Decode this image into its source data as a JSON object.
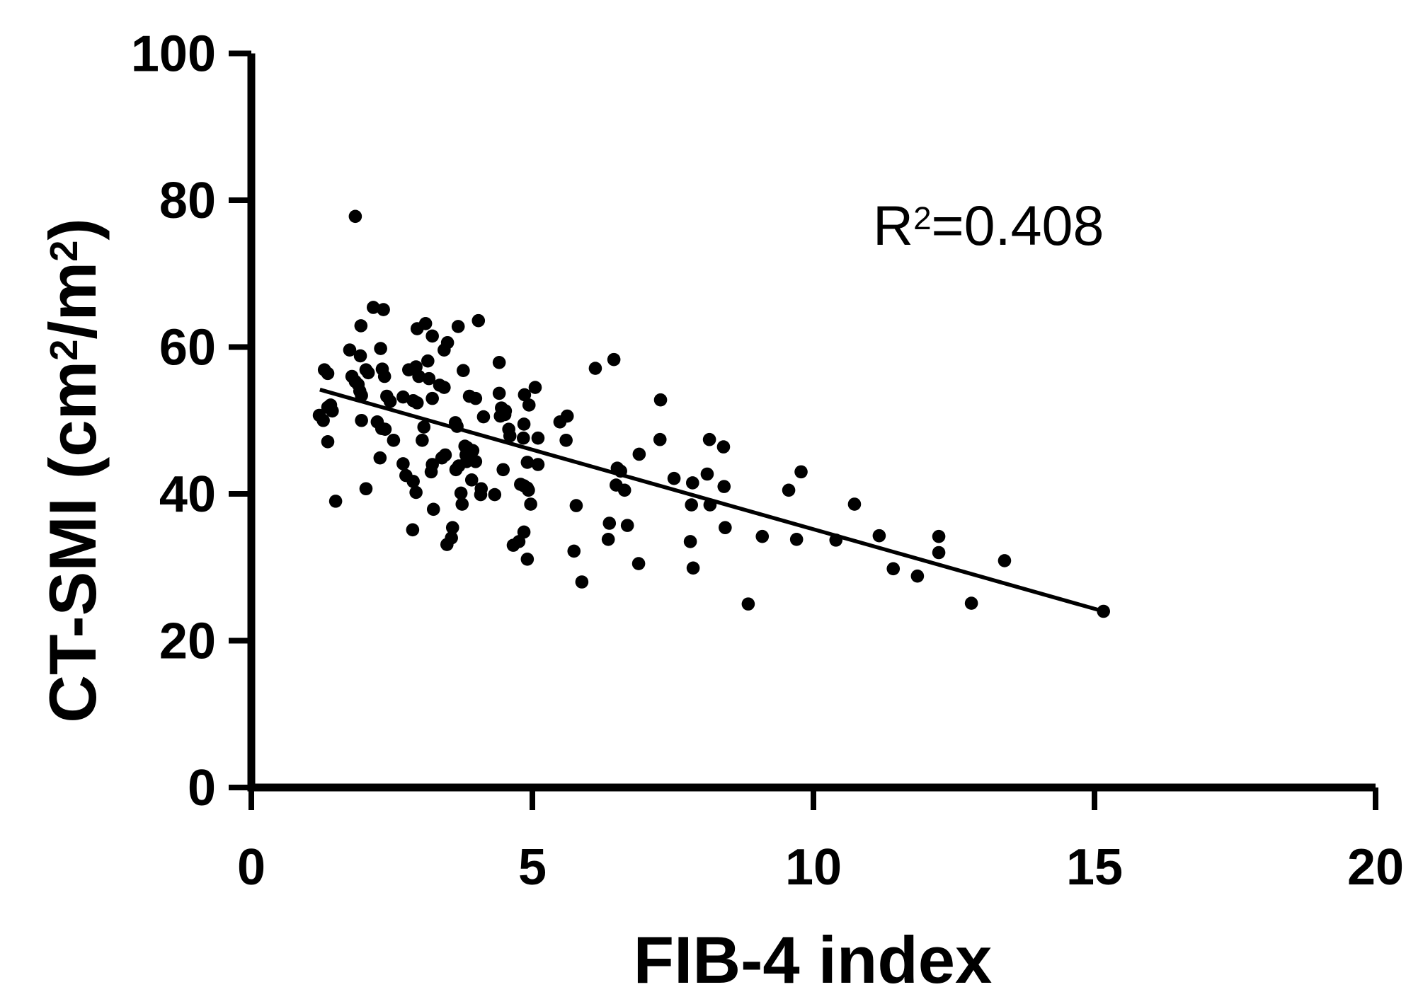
{
  "colors": {
    "ink": "#000000",
    "background": "#ffffff"
  },
  "annotation": {
    "text": "R2=0.408",
    "parts": [
      {
        "text": "R"
      },
      {
        "text": "2",
        "sup": true
      },
      {
        "text": "=0.408"
      }
    ]
  },
  "axes": {
    "x": {
      "title": "FIB-4 index"
    },
    "y": {
      "title": "CT-SMI (cm2/m2)",
      "title_parts": [
        {
          "text": "CT-SMI (cm"
        },
        {
          "text": "2",
          "sup": true
        },
        {
          "text": "/m"
        },
        {
          "text": "2",
          "sup": true
        },
        {
          "text": ")"
        }
      ]
    }
  },
  "chart_data": {
    "type": "scatter",
    "title": "",
    "xlabel": "FIB-4 index",
    "ylabel": "CT-SMI (cm2/m2)",
    "xlim": [
      0,
      20
    ],
    "ylim": [
      0,
      100
    ],
    "xticks": [
      0,
      5,
      10,
      15,
      20
    ],
    "yticks": [
      0,
      20,
      40,
      60,
      80,
      100
    ],
    "grid": false,
    "legend": "none",
    "r_squared": 0.408,
    "regression_line": {
      "x1": 1.22,
      "y1": 54.2,
      "x2": 15.16,
      "y2": 24.0
    },
    "points": [
      [
        1.85,
        77.8
      ],
      [
        2.17,
        65.4
      ],
      [
        2.35,
        65.1
      ],
      [
        1.95,
        62.9
      ],
      [
        2.95,
        62.5
      ],
      [
        3.1,
        63.2
      ],
      [
        3.68,
        62.8
      ],
      [
        4.04,
        63.6
      ],
      [
        3.22,
        61.5
      ],
      [
        3.49,
        60.6
      ],
      [
        3.43,
        59.6
      ],
      [
        1.75,
        59.6
      ],
      [
        1.94,
        58.8
      ],
      [
        2.3,
        59.8
      ],
      [
        1.3,
        56.9
      ],
      [
        1.36,
        56.4
      ],
      [
        2.04,
        56.9
      ],
      [
        2.08,
        56.5
      ],
      [
        2.33,
        57.0
      ],
      [
        2.37,
        56.0
      ],
      [
        2.8,
        56.9
      ],
      [
        2.93,
        57.3
      ],
      [
        2.98,
        56.0
      ],
      [
        3.14,
        58.1
      ],
      [
        3.16,
        55.7
      ],
      [
        3.35,
        54.8
      ],
      [
        3.43,
        54.5
      ],
      [
        1.79,
        56.0
      ],
      [
        1.85,
        55.3
      ],
      [
        1.9,
        54.9
      ],
      [
        1.93,
        54.0
      ],
      [
        1.96,
        53.4
      ],
      [
        2.41,
        53.3
      ],
      [
        2.47,
        52.6
      ],
      [
        2.7,
        53.2
      ],
      [
        2.88,
        52.7
      ],
      [
        2.95,
        52.4
      ],
      [
        3.22,
        53.0
      ],
      [
        1.21,
        50.7
      ],
      [
        1.28,
        50.0
      ],
      [
        1.36,
        51.8
      ],
      [
        1.41,
        52.1
      ],
      [
        1.44,
        51.3
      ],
      [
        1.96,
        50.0
      ],
      [
        2.24,
        49.8
      ],
      [
        2.32,
        48.9
      ],
      [
        2.38,
        48.8
      ],
      [
        2.53,
        47.3
      ],
      [
        1.36,
        47.1
      ],
      [
        2.29,
        44.9
      ],
      [
        3.04,
        47.3
      ],
      [
        3.07,
        49.1
      ],
      [
        3.45,
        45.3
      ],
      [
        3.39,
        44.9
      ],
      [
        2.7,
        44.1
      ],
      [
        2.75,
        42.5
      ],
      [
        2.88,
        41.7
      ],
      [
        3.2,
        43.0
      ],
      [
        3.22,
        44.0
      ],
      [
        3.64,
        43.3
      ],
      [
        2.04,
        40.7
      ],
      [
        2.93,
        40.2
      ],
      [
        3.63,
        49.7
      ],
      [
        3.66,
        49.2
      ],
      [
        3.8,
        46.5
      ],
      [
        3.82,
        45.3
      ],
      [
        4.41,
        57.9
      ],
      [
        3.77,
        56.8
      ],
      [
        3.88,
        53.3
      ],
      [
        3.99,
        53.0
      ],
      [
        4.41,
        53.7
      ],
      [
        4.86,
        53.5
      ],
      [
        5.05,
        54.5
      ],
      [
        4.94,
        52.1
      ],
      [
        4.45,
        51.7
      ],
      [
        4.52,
        51.3
      ],
      [
        4.13,
        50.5
      ],
      [
        4.43,
        50.6
      ],
      [
        4.51,
        50.8
      ],
      [
        6.12,
        57.1
      ],
      [
        6.45,
        58.3
      ],
      [
        7.28,
        52.8
      ],
      [
        5.49,
        49.8
      ],
      [
        5.62,
        50.6
      ],
      [
        4.85,
        49.5
      ],
      [
        4.58,
        48.8
      ],
      [
        4.6,
        47.9
      ],
      [
        4.84,
        47.6
      ],
      [
        5.1,
        47.6
      ],
      [
        5.6,
        47.3
      ],
      [
        7.27,
        47.4
      ],
      [
        6.9,
        45.4
      ],
      [
        3.84,
        46.3
      ],
      [
        3.94,
        45.9
      ],
      [
        3.84,
        45.0
      ],
      [
        3.83,
        44.4
      ],
      [
        3.99,
        44.4
      ],
      [
        3.69,
        43.8
      ],
      [
        3.92,
        41.9
      ],
      [
        4.09,
        40.7
      ],
      [
        4.48,
        43.3
      ],
      [
        4.91,
        44.3
      ],
      [
        5.1,
        44.0
      ],
      [
        4.79,
        41.3
      ],
      [
        4.85,
        41.1
      ],
      [
        4.91,
        40.8
      ],
      [
        6.51,
        43.5
      ],
      [
        6.57,
        43.1
      ],
      [
        6.49,
        41.2
      ],
      [
        6.64,
        40.5
      ],
      [
        7.52,
        42.1
      ],
      [
        8.15,
        47.4
      ],
      [
        8.4,
        46.4
      ],
      [
        8.11,
        42.7
      ],
      [
        7.85,
        41.5
      ],
      [
        8.41,
        41.0
      ],
      [
        9.78,
        43.0
      ],
      [
        9.56,
        40.5
      ],
      [
        1.5,
        39.0
      ],
      [
        3.24,
        37.9
      ],
      [
        3.73,
        40.1
      ],
      [
        3.75,
        38.6
      ],
      [
        4.08,
        39.9
      ],
      [
        4.33,
        39.9
      ],
      [
        2.87,
        35.1
      ],
      [
        3.58,
        35.4
      ],
      [
        3.56,
        34.0
      ],
      [
        3.48,
        33.1
      ],
      [
        4.66,
        33.0
      ],
      [
        4.76,
        33.5
      ],
      [
        4.93,
        40.5
      ],
      [
        4.97,
        38.6
      ],
      [
        4.85,
        34.8
      ],
      [
        4.91,
        31.1
      ],
      [
        5.78,
        38.4
      ],
      [
        5.74,
        32.2
      ],
      [
        5.88,
        28.0
      ],
      [
        6.37,
        36.0
      ],
      [
        6.69,
        35.7
      ],
      [
        6.35,
        33.8
      ],
      [
        6.89,
        30.5
      ],
      [
        7.81,
        33.5
      ],
      [
        7.83,
        38.5
      ],
      [
        8.16,
        38.5
      ],
      [
        7.86,
        29.9
      ],
      [
        8.43,
        35.4
      ],
      [
        8.84,
        25.0
      ],
      [
        9.09,
        34.2
      ],
      [
        10.73,
        38.6
      ],
      [
        11.17,
        34.3
      ],
      [
        12.23,
        34.2
      ],
      [
        12.23,
        32.0
      ],
      [
        9.7,
        33.8
      ],
      [
        10.4,
        33.7
      ],
      [
        11.42,
        29.8
      ],
      [
        11.85,
        28.8
      ],
      [
        13.4,
        30.9
      ],
      [
        12.81,
        25.1
      ],
      [
        15.16,
        24.0
      ]
    ]
  }
}
